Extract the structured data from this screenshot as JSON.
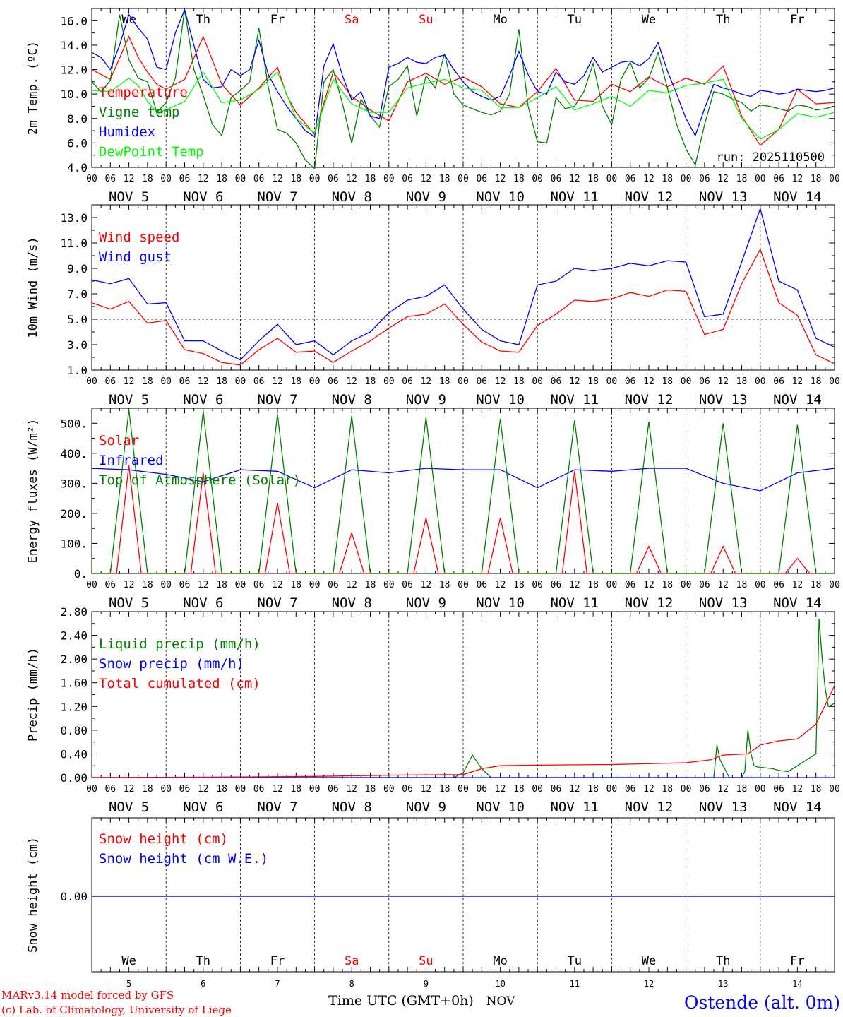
{
  "chart_data": [
    {
      "type": "line",
      "ylabel": "2m Temp. (ºC)",
      "ylim": [
        4,
        17
      ],
      "yticks": [
        4.0,
        6.0,
        8.0,
        10.0,
        12.0,
        14.0,
        16.0
      ],
      "ytick_labels": [
        "4.0",
        "6.0",
        "8.0",
        "10.0",
        "12.0",
        "14.0",
        "16.0"
      ],
      "legend": "top-left",
      "annotation": "run: 2025110500",
      "series": [
        {
          "name": "Temperature",
          "color": "#ff0000",
          "hours": [
            0,
            6,
            12,
            15,
            18,
            21,
            24,
            30,
            36,
            42,
            48,
            54,
            60,
            63,
            66,
            72,
            78,
            84,
            90,
            96,
            102,
            108,
            114,
            120,
            126,
            132,
            138,
            144,
            150,
            156,
            162,
            168,
            174,
            180,
            186,
            192,
            198,
            204,
            210,
            216,
            222,
            228,
            234,
            240
          ],
          "values": [
            12.0,
            11.2,
            14.7,
            13.0,
            11.8,
            10.8,
            10.4,
            11.2,
            14.7,
            10.8,
            9.1,
            10.5,
            12.2,
            9.9,
            8.5,
            6.7,
            11.8,
            9.8,
            8.7,
            7.8,
            11.0,
            11.7,
            10.8,
            11.4,
            10.6,
            9.2,
            8.9,
            10.2,
            12.1,
            9.5,
            9.4,
            10.8,
            10.2,
            11.4,
            10.6,
            11.3,
            10.8,
            12.3,
            8.2,
            5.8,
            7.1,
            10.4,
            9.2,
            9.3
          ]
        },
        {
          "name": "Vigne temp",
          "color": "#008000",
          "hours": [
            0,
            3,
            6,
            9,
            12,
            15,
            18,
            21,
            24,
            27,
            30,
            33,
            36,
            39,
            42,
            45,
            48,
            51,
            54,
            57,
            60,
            63,
            66,
            69,
            72,
            75,
            78,
            81,
            84,
            87,
            90,
            93,
            96,
            99,
            102,
            105,
            108,
            111,
            114,
            117,
            120,
            123,
            126,
            129,
            132,
            135,
            138,
            141,
            144,
            147,
            150,
            153,
            156,
            159,
            162,
            165,
            168,
            171,
            174,
            177,
            180,
            183,
            186,
            189,
            192,
            195,
            198,
            201,
            204,
            207,
            210,
            213,
            216,
            219,
            222,
            225,
            228,
            231,
            234,
            237,
            240
          ],
          "values": [
            11.0,
            10.2,
            11.1,
            16.5,
            12.8,
            11.3,
            11.0,
            8.5,
            9.3,
            11.3,
            16.9,
            12.0,
            9.9,
            7.5,
            6.6,
            9.7,
            10.3,
            11.0,
            15.4,
            10.6,
            7.1,
            6.8,
            6.0,
            4.6,
            3.9,
            11.0,
            12.0,
            9.2,
            6.0,
            9.6,
            8.2,
            7.3,
            10.6,
            11.2,
            12.3,
            8.2,
            11.5,
            10.5,
            13.3,
            10.0,
            9.1,
            8.8,
            8.5,
            8.3,
            8.6,
            10.0,
            15.3,
            9.0,
            6.1,
            6.0,
            9.7,
            8.8,
            9.0,
            10.2,
            12.5,
            9.0,
            7.5,
            11.2,
            12.6,
            10.5,
            11.3,
            13.4,
            10.5,
            7.5,
            5.5,
            4.2,
            7.5,
            10.2,
            10.0,
            9.6,
            9.3,
            8.6,
            9.1,
            9.0,
            8.8,
            8.6,
            9.1,
            9.0,
            8.7,
            8.8,
            9.0
          ]
        },
        {
          "name": "Humidex",
          "color": "#0000ff",
          "hours": [
            0,
            3,
            6,
            9,
            12,
            15,
            18,
            21,
            24,
            27,
            30,
            33,
            36,
            39,
            42,
            45,
            48,
            51,
            54,
            57,
            60,
            63,
            66,
            69,
            72,
            75,
            78,
            81,
            84,
            87,
            90,
            93,
            96,
            99,
            102,
            105,
            108,
            111,
            114,
            117,
            120,
            123,
            126,
            129,
            132,
            135,
            138,
            141,
            144,
            147,
            150,
            153,
            156,
            159,
            162,
            165,
            168,
            171,
            174,
            177,
            180,
            183,
            186,
            189,
            192,
            195,
            198,
            201,
            204,
            207,
            210,
            213,
            216,
            219,
            222,
            225,
            228,
            231,
            234,
            237,
            240
          ],
          "values": [
            13.4,
            13.0,
            12.0,
            14.0,
            16.5,
            15.4,
            14.5,
            12.2,
            12.0,
            15.0,
            16.9,
            14.0,
            11.2,
            10.5,
            10.6,
            12.0,
            11.5,
            12.0,
            14.4,
            11.6,
            10.2,
            9.0,
            8.0,
            7.0,
            6.5,
            12.3,
            14.1,
            11.5,
            9.5,
            10.2,
            8.2,
            8.0,
            12.2,
            12.5,
            13.0,
            12.6,
            12.5,
            13.0,
            13.2,
            12.0,
            11.0,
            10.2,
            9.8,
            9.5,
            9.8,
            11.5,
            13.5,
            11.6,
            10.2,
            10.0,
            11.8,
            11.0,
            10.8,
            11.5,
            13.0,
            11.8,
            12.2,
            12.6,
            12.7,
            12.3,
            12.9,
            14.2,
            11.9,
            10.0,
            8.0,
            6.6,
            8.8,
            10.8,
            10.5,
            10.3,
            10.0,
            9.8,
            10.3,
            10.2,
            10.0,
            10.1,
            10.4,
            10.3,
            10.2,
            10.3,
            10.5
          ]
        },
        {
          "name": "DewPoint Temp",
          "color": "#00ff00",
          "hours": [
            0,
            6,
            12,
            15,
            18,
            21,
            24,
            30,
            36,
            42,
            48,
            54,
            60,
            63,
            66,
            72,
            78,
            84,
            90,
            96,
            102,
            108,
            114,
            120,
            126,
            132,
            138,
            144,
            150,
            156,
            162,
            168,
            174,
            180,
            186,
            192,
            198,
            204,
            210,
            216,
            222,
            228,
            234,
            240
          ],
          "values": [
            10.3,
            10.2,
            11.3,
            10.7,
            9.4,
            8.5,
            8.7,
            9.4,
            11.8,
            9.3,
            9.5,
            10.4,
            11.8,
            10.0,
            8.0,
            6.8,
            11.2,
            9.2,
            8.5,
            8.5,
            10.5,
            10.9,
            11.2,
            10.5,
            10.3,
            8.9,
            8.9,
            9.7,
            10.6,
            8.7,
            9.2,
            9.8,
            9.0,
            10.3,
            10.1,
            10.7,
            10.9,
            11.2,
            8.0,
            6.3,
            7.1,
            8.4,
            8.1,
            8.5
          ]
        }
      ]
    },
    {
      "type": "line",
      "ylabel": "10m Wind (m/s)",
      "ylim": [
        1,
        14
      ],
      "yticks": [
        1.0,
        3.0,
        5.0,
        7.0,
        9.0,
        11.0,
        13.0
      ],
      "ytick_labels": [
        "1.0",
        "3.0",
        "5.0",
        "7.0",
        "9.0",
        "11.0",
        "13.0"
      ],
      "reference_line": 5,
      "legend": "top-left",
      "series": [
        {
          "name": "Wind speed",
          "color": "#ff0000",
          "hours": [
            0,
            6,
            12,
            18,
            24,
            30,
            36,
            42,
            48,
            54,
            60,
            66,
            72,
            78,
            84,
            90,
            96,
            102,
            108,
            114,
            120,
            126,
            132,
            138,
            144,
            150,
            156,
            162,
            168,
            174,
            180,
            186,
            192,
            198,
            204,
            210,
            216,
            222,
            228,
            234,
            240
          ],
          "values": [
            6.3,
            5.8,
            6.4,
            4.7,
            4.9,
            2.6,
            2.3,
            1.6,
            1.4,
            2.6,
            3.5,
            2.4,
            2.5,
            1.6,
            2.5,
            3.3,
            4.3,
            5.2,
            5.4,
            6.2,
            4.6,
            3.2,
            2.5,
            2.4,
            4.5,
            5.4,
            6.5,
            6.4,
            6.6,
            7.1,
            6.8,
            7.3,
            7.2,
            3.8,
            4.2,
            7.8,
            10.5,
            6.3,
            5.3,
            2.2,
            1.5
          ]
        },
        {
          "name": "Wind gust",
          "color": "#0000ff",
          "hours": [
            0,
            6,
            12,
            18,
            24,
            30,
            36,
            42,
            48,
            54,
            60,
            66,
            72,
            78,
            84,
            90,
            96,
            102,
            108,
            114,
            120,
            126,
            132,
            138,
            144,
            150,
            156,
            162,
            168,
            174,
            180,
            186,
            192,
            198,
            204,
            210,
            216,
            222,
            228,
            234,
            240
          ],
          "values": [
            8.1,
            7.8,
            8.2,
            6.2,
            6.3,
            3.3,
            3.3,
            2.5,
            1.8,
            3.3,
            4.6,
            3.0,
            3.3,
            2.2,
            3.3,
            4.0,
            5.5,
            6.5,
            6.8,
            7.7,
            5.8,
            4.2,
            3.3,
            3.0,
            7.7,
            8.0,
            9.0,
            8.8,
            9.0,
            9.4,
            9.2,
            9.6,
            9.5,
            5.2,
            5.4,
            9.5,
            13.7,
            8.0,
            7.3,
            3.5,
            2.8
          ]
        }
      ]
    },
    {
      "type": "line",
      "ylabel": "Energy fluxes (W/m²)",
      "ylim": [
        0,
        550
      ],
      "yticks": [
        0,
        100,
        200,
        300,
        400,
        500
      ],
      "ytick_labels": [
        "0.",
        "100.",
        "200.",
        "300.",
        "400.",
        "500."
      ],
      "legend": "top-left",
      "series": [
        {
          "name": "Solar",
          "color": "#ff0000",
          "day_peaks": [
            360,
            335,
            235,
            135,
            185,
            185,
            340,
            90,
            90,
            50
          ]
        },
        {
          "name": "Infrared",
          "color": "#0000ff",
          "hours": [
            0,
            12,
            24,
            36,
            48,
            60,
            72,
            84,
            96,
            108,
            120,
            132,
            144,
            156,
            168,
            180,
            192,
            204,
            216,
            228,
            240
          ],
          "values": [
            350,
            345,
            330,
            305,
            345,
            340,
            285,
            345,
            335,
            350,
            345,
            345,
            285,
            345,
            340,
            350,
            350,
            300,
            275,
            335,
            350
          ]
        },
        {
          "name": "Top of Atmosphere (Solar)",
          "color": "#008000",
          "day_peaks": [
            545,
            540,
            530,
            525,
            520,
            515,
            510,
            505,
            500,
            495
          ]
        }
      ]
    },
    {
      "type": "line",
      "ylabel": "Precip (mm/h)",
      "ylim": [
        0,
        2.8
      ],
      "yticks": [
        0.0,
        0.4,
        0.8,
        1.2,
        1.6,
        2.0,
        2.4,
        2.8
      ],
      "ytick_labels": [
        "0.00",
        "0.40",
        "0.80",
        "1.20",
        "1.60",
        "2.00",
        "2.40",
        "2.80"
      ],
      "legend": "top-left",
      "series": [
        {
          "name": "Liquid precip (mm/h)",
          "color": "#008000",
          "hours": [
            0,
            117,
            120,
            123,
            126,
            129,
            200,
            201,
            202,
            203,
            206,
            208,
            210,
            211,
            212,
            213,
            214,
            215,
            220,
            222,
            225,
            228,
            234,
            235,
            236,
            237,
            238,
            240
          ],
          "values": [
            0,
            0,
            0.08,
            0.38,
            0.15,
            0,
            0,
            0,
            0.55,
            0.3,
            0,
            0,
            0,
            0.1,
            0.8,
            0.4,
            0.2,
            0.18,
            0.15,
            0.12,
            0.1,
            0.2,
            0.4,
            2.68,
            2.0,
            1.5,
            1.2,
            1.25
          ]
        },
        {
          "name": "Snow precip (mm/h)",
          "color": "#0000ff",
          "hours": [
            0,
            240
          ],
          "values": [
            0,
            0
          ]
        },
        {
          "name": "Total cumulated (cm)",
          "color": "#ff0000",
          "hours": [
            0,
            48,
            72,
            96,
            120,
            126,
            132,
            144,
            168,
            192,
            200,
            204,
            212,
            216,
            222,
            228,
            234,
            240
          ],
          "values": [
            0,
            0.01,
            0.02,
            0.04,
            0.05,
            0.15,
            0.2,
            0.21,
            0.22,
            0.25,
            0.3,
            0.38,
            0.4,
            0.55,
            0.62,
            0.65,
            0.9,
            1.55
          ]
        }
      ]
    },
    {
      "type": "line",
      "ylabel": "Snow height (cm)",
      "yticks": [
        0.0
      ],
      "ytick_labels": [
        "0.00"
      ],
      "legend": "top-left",
      "series": [
        {
          "name": "Snow height (cm)",
          "color": "#ff0000",
          "hours": [
            0,
            240
          ],
          "values": [
            0,
            0
          ]
        },
        {
          "name": "Snow height (cm W.E.)",
          "color": "#0000ff",
          "hours": [
            0,
            240
          ],
          "values": [
            0,
            0
          ]
        }
      ]
    }
  ],
  "x_axis": {
    "hour_ticks": [
      "00",
      "06",
      "12",
      "18"
    ],
    "end_tick": "00",
    "date_labels": [
      "NOV  5",
      "NOV  6",
      "NOV  7",
      "NOV  8",
      "NOV  9",
      "NOV 10",
      "NOV 11",
      "NOV 12",
      "NOV 13",
      "NOV 14"
    ],
    "weekdays": [
      "We",
      "Th",
      "Fr",
      "Sa",
      "Su",
      "Mo",
      "Tu",
      "We",
      "Th",
      "Fr"
    ],
    "weekday_colors": [
      "#000000",
      "#000000",
      "#000000",
      "#ff0000",
      "#ff0000",
      "#000000",
      "#000000",
      "#000000",
      "#000000",
      "#000000"
    ],
    "day_numbers": [
      "5",
      "6",
      "7",
      "8",
      "9",
      "10",
      "11",
      "12",
      "13",
      "14"
    ],
    "xlabel": "Time UTC (GMT+0h)",
    "month": "NOV"
  },
  "footer": {
    "credit_line1": "MARv3.14 model forced by GFS",
    "credit_line2": "(c) Lab. of Climatology, University of Liege",
    "station": "Ostende (alt. 0m)",
    "credit_color": "#ff0000",
    "station_color": "#0000ff"
  }
}
